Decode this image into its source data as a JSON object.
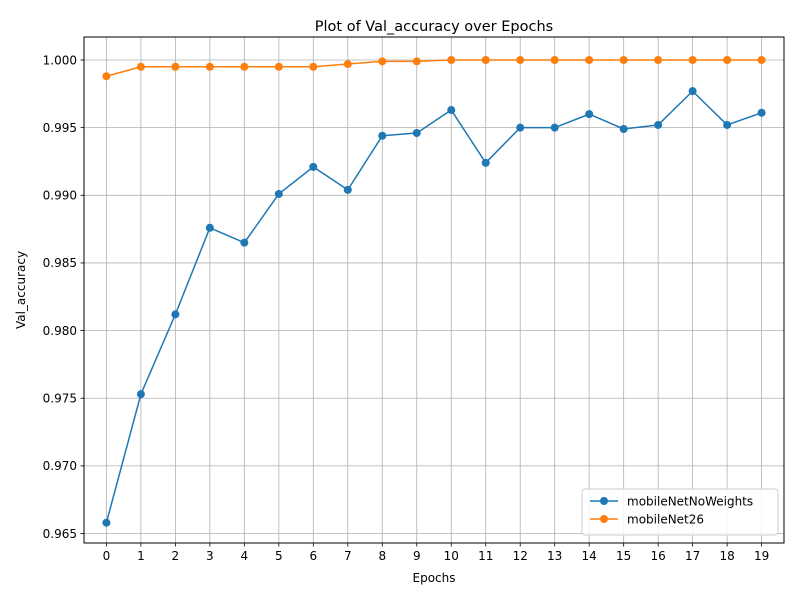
{
  "chart_data": {
    "type": "line",
    "title": "Plot of Val_accuracy over Epochs",
    "xlabel": "Epochs",
    "ylabel": "Val_accuracy",
    "x": [
      0,
      1,
      2,
      3,
      4,
      5,
      6,
      7,
      8,
      9,
      10,
      11,
      12,
      13,
      14,
      15,
      16,
      17,
      18,
      19
    ],
    "ylim": [
      0.9643,
      1.0017
    ],
    "yticks": [
      "0.965",
      "0.970",
      "0.975",
      "0.980",
      "0.985",
      "0.990",
      "0.995",
      "1.000"
    ],
    "grid": true,
    "legend_position": "lower right",
    "markers": "circle",
    "series": [
      {
        "name": "mobileNetNoWeights",
        "color": "#1f77b4",
        "values": [
          0.9658,
          0.9753,
          0.9812,
          0.9876,
          0.9865,
          0.9901,
          0.9921,
          0.9904,
          0.9944,
          0.9946,
          0.9963,
          0.9924,
          0.995,
          0.995,
          0.996,
          0.9949,
          0.9952,
          0.9977,
          0.9952,
          0.9961
        ]
      },
      {
        "name": "mobileNet26",
        "color": "#ff7f0e",
        "values": [
          0.9988,
          0.9995,
          0.9995,
          0.9995,
          0.9995,
          0.9995,
          0.9995,
          0.9997,
          0.9999,
          0.9999,
          1.0,
          1.0,
          1.0,
          1.0,
          1.0,
          1.0,
          1.0,
          1.0,
          1.0,
          1.0
        ]
      }
    ]
  }
}
